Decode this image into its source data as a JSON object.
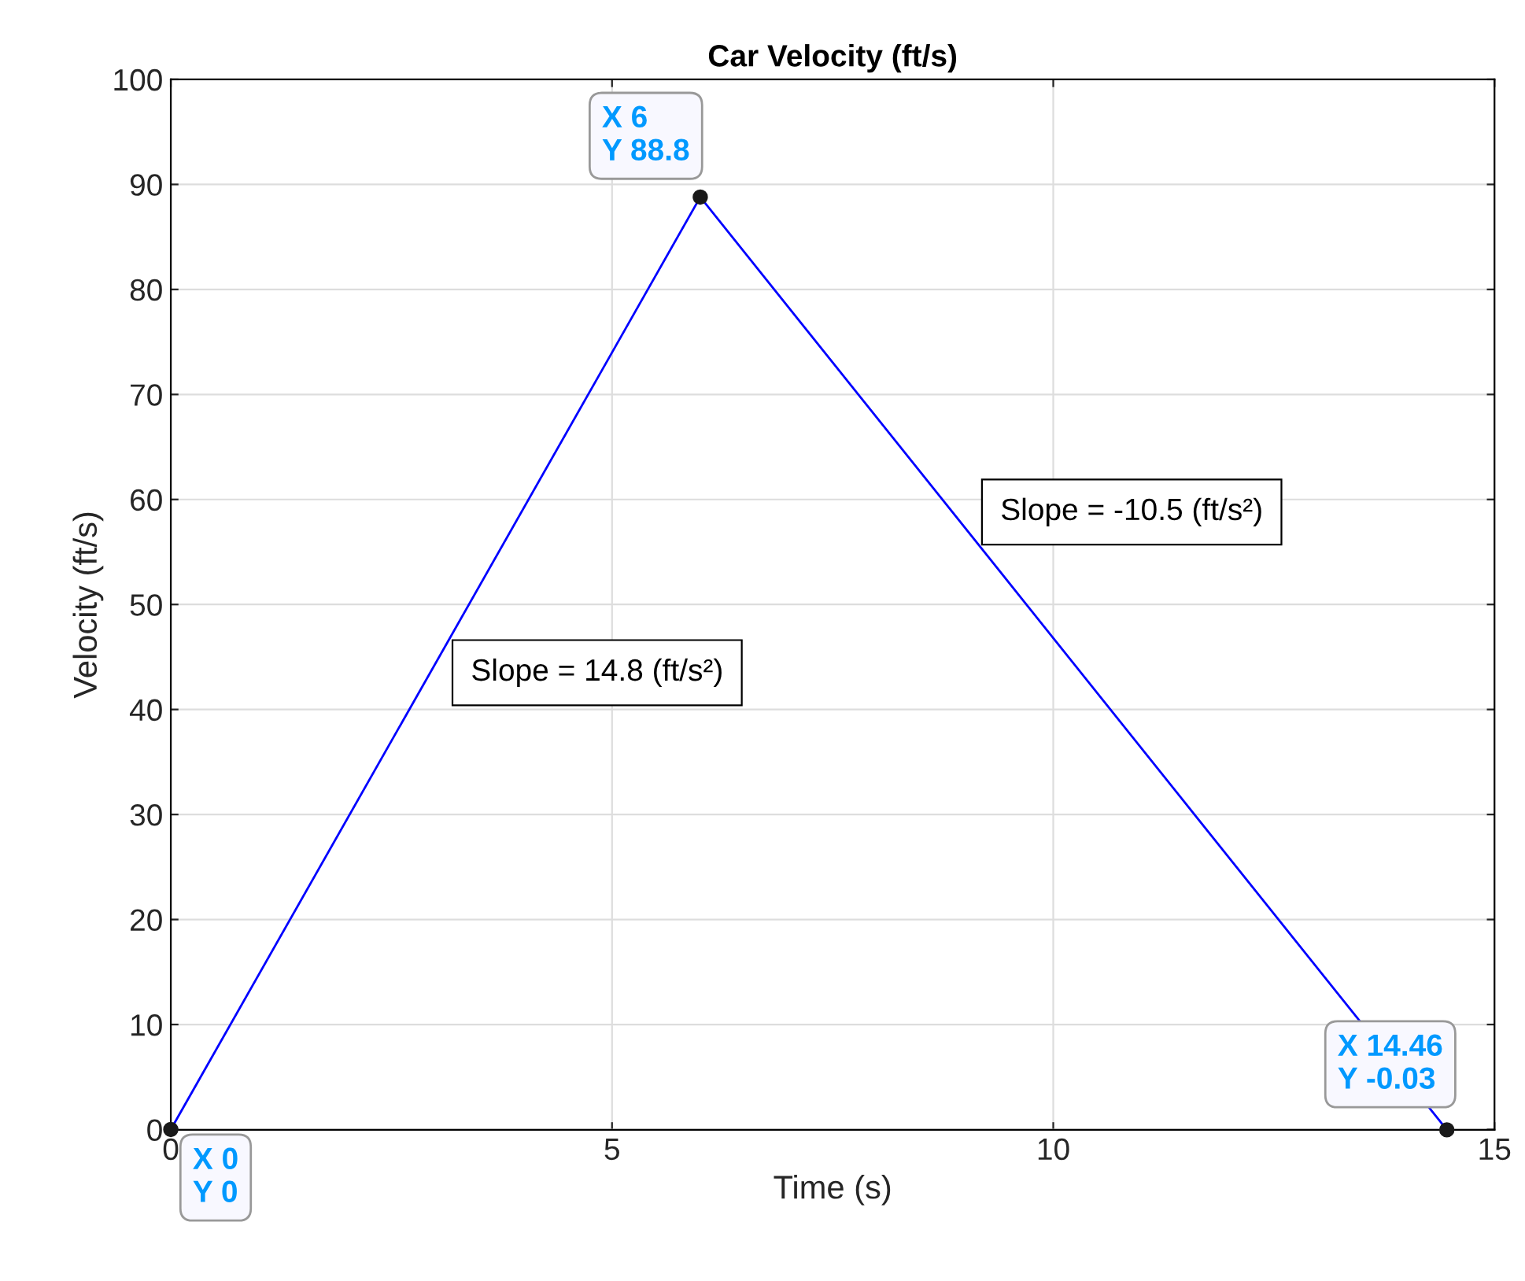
{
  "chart_data": {
    "type": "line",
    "title": "Car Velocity (ft/s)",
    "xlabel": "Time (s)",
    "ylabel": "Velocity (ft/s)",
    "x": [
      0,
      6,
      14.46
    ],
    "series": [
      {
        "color": "#0000ff",
        "values": [
          0,
          88.8,
          -0.03
        ]
      }
    ],
    "xlim": [
      0,
      15
    ],
    "xticks": [
      0,
      5,
      10,
      15
    ],
    "ylim": [
      -0.03,
      100
    ],
    "yticks": [
      0,
      10,
      20,
      30,
      40,
      50,
      60,
      70,
      80,
      90,
      100
    ],
    "grid": true,
    "line_style": "solid",
    "marker": "circle",
    "annotations": [
      {
        "text": "X 0\nY 0",
        "x": 0,
        "y": 0
      },
      {
        "text": "X 6\nY 88.8",
        "x": 6,
        "y": 88.8
      },
      {
        "text": "X 14.46\nY -0.03",
        "x": 14.46,
        "y": -0.03
      },
      "Slope = 14.8 (ft/s²)",
      "Slope = -10.5 (ft/s²)"
    ]
  }
}
